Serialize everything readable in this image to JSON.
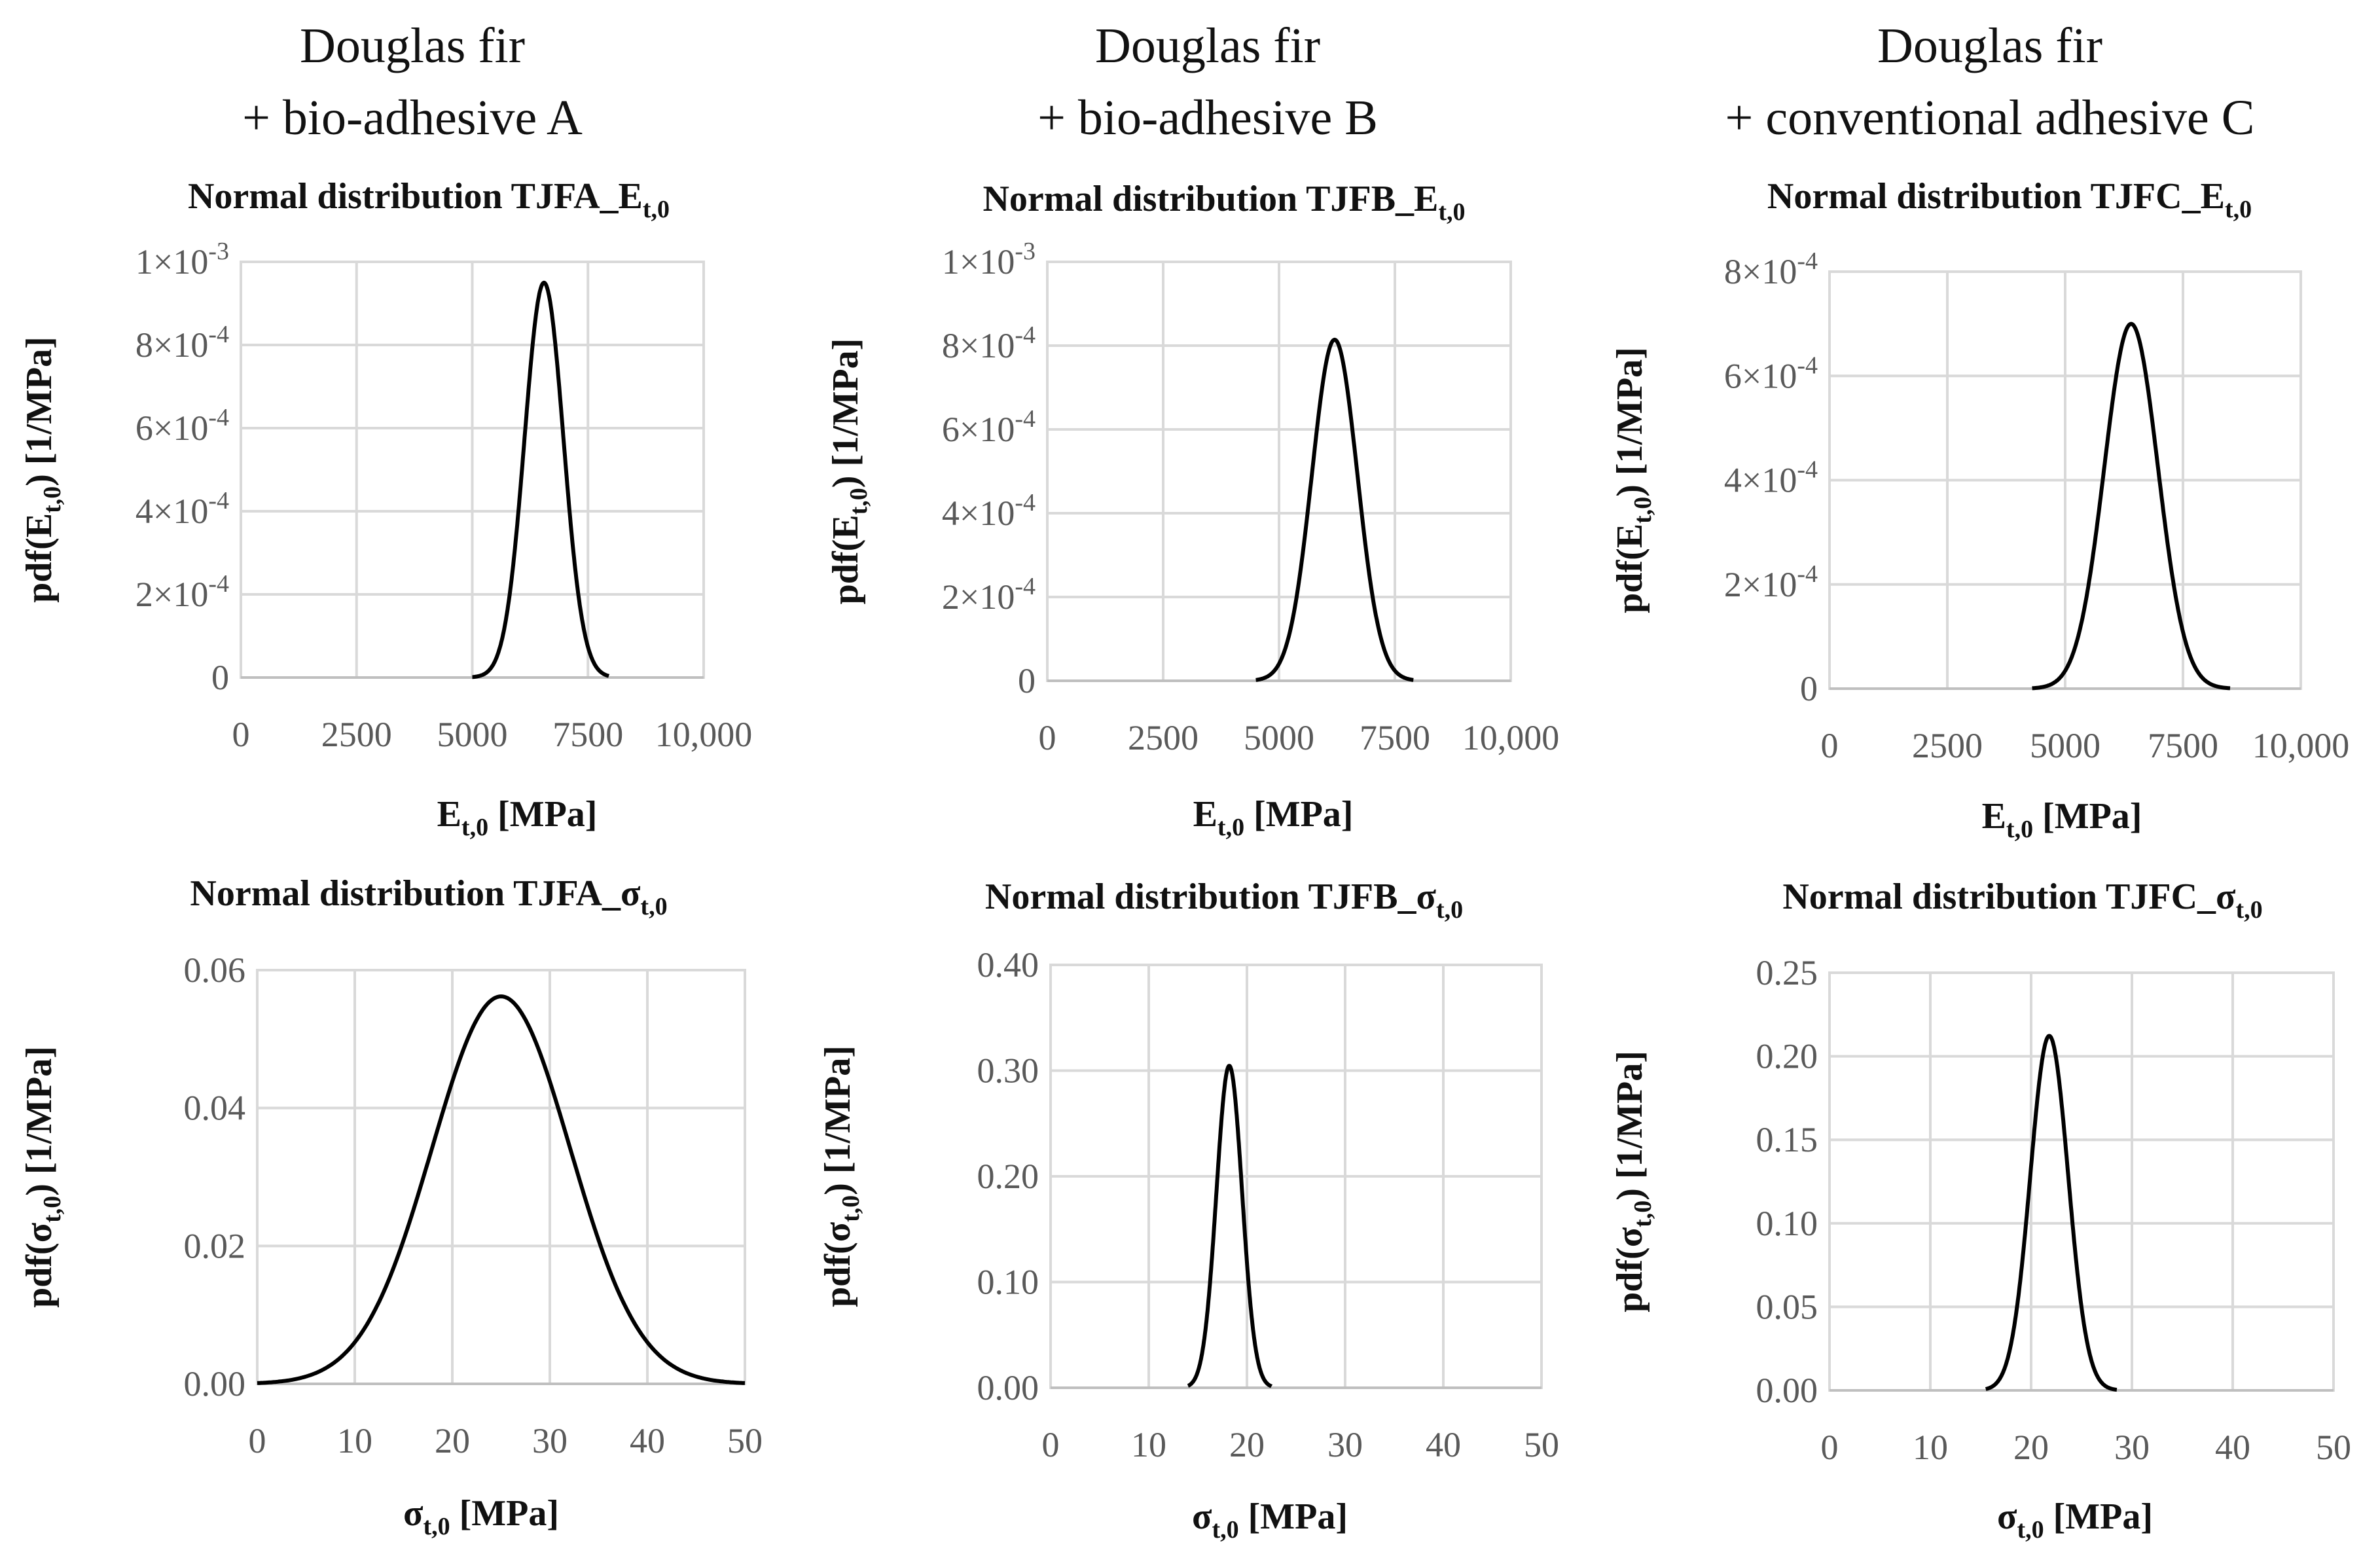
{
  "column_titles": [
    {
      "line1": "Douglas fir",
      "line2": "+ bio-adhesive A"
    },
    {
      "line1": "Douglas fir",
      "line2": "+ bio-adhesive B"
    },
    {
      "line1": "Douglas fir",
      "line2": "+ conventional adhesive C"
    }
  ],
  "chart_data": [
    {
      "type": "line",
      "title_main": "Normal distribution TJFA_",
      "title_symbol": "E",
      "title_sub": "t,0",
      "xlabel_symbol": "E",
      "xlabel_sub": "t,0",
      "xlabel_unit": " [MPa]",
      "ylabel_pre": "pdf(",
      "ylabel_symbol": "E",
      "ylabel_sub": "t,0",
      "ylabel_post": ") [1/MPa]",
      "xlim": [
        0,
        10000
      ],
      "ylim": [
        0,
        0.001
      ],
      "xticks": [
        0,
        2500,
        5000,
        7500,
        10000
      ],
      "xtick_labels": [
        "0",
        "2500",
        "5000",
        "7500",
        "10,000"
      ],
      "yticks": [
        0,
        0.0002,
        0.0004,
        0.0006,
        0.0008,
        0.001
      ],
      "ytick_labels": [
        {
          "m": "0",
          "e": ""
        },
        {
          "m": "2×10",
          "e": "-4"
        },
        {
          "m": "4×10",
          "e": "-4"
        },
        {
          "m": "6×10",
          "e": "-4"
        },
        {
          "m": "8×10",
          "e": "-4"
        },
        {
          "m": "1×10",
          "e": "-3"
        }
      ],
      "series": [
        {
          "name": "TJFA_Et,0",
          "distribution": "normal",
          "mean": 6550,
          "std": 420,
          "x_range": [
            5000,
            7950
          ]
        }
      ]
    },
    {
      "type": "line",
      "title_main": "Normal distribution TJFB_",
      "title_symbol": "E",
      "title_sub": "t,0",
      "xlabel_symbol": "E",
      "xlabel_sub": "t,0",
      "xlabel_unit": " [MPa]",
      "ylabel_pre": "pdf(",
      "ylabel_symbol": "E",
      "ylabel_sub": "t,0",
      "ylabel_post": ") [1/MPa]",
      "xlim": [
        0,
        10000
      ],
      "ylim": [
        0,
        0.001
      ],
      "xticks": [
        0,
        2500,
        5000,
        7500,
        10000
      ],
      "xtick_labels": [
        "0",
        "2500",
        "5000",
        "7500",
        "10,000"
      ],
      "yticks": [
        0,
        0.0002,
        0.0004,
        0.0006,
        0.0008,
        0.001
      ],
      "ytick_labels": [
        {
          "m": "0",
          "e": ""
        },
        {
          "m": "2×10",
          "e": "-4"
        },
        {
          "m": "4×10",
          "e": "-4"
        },
        {
          "m": "6×10",
          "e": "-4"
        },
        {
          "m": "8×10",
          "e": "-4"
        },
        {
          "m": "1×10",
          "e": "-3"
        }
      ],
      "series": [
        {
          "name": "TJFB_Et,0",
          "distribution": "normal",
          "mean": 6200,
          "std": 490,
          "x_range": [
            4500,
            7900
          ]
        }
      ]
    },
    {
      "type": "line",
      "title_main": "Normal distribution TJFC_",
      "title_symbol": "E",
      "title_sub": "t,0",
      "xlabel_symbol": "E",
      "xlabel_sub": "t,0",
      "xlabel_unit": " [MPa]",
      "ylabel_pre": "pdf(",
      "ylabel_symbol": "E",
      "ylabel_sub": "t,0",
      "ylabel_post": ") [1/MPa]",
      "xlim": [
        0,
        10000
      ],
      "ylim": [
        0,
        0.0008
      ],
      "xticks": [
        0,
        2500,
        5000,
        7500,
        10000
      ],
      "xtick_labels": [
        "0",
        "2500",
        "5000",
        "7500",
        "10,000"
      ],
      "yticks": [
        0,
        0.0002,
        0.0004,
        0.0006,
        0.0008
      ],
      "ytick_labels": [
        {
          "m": "0",
          "e": ""
        },
        {
          "m": "2×10",
          "e": "-4"
        },
        {
          "m": "4×10",
          "e": "-4"
        },
        {
          "m": "6×10",
          "e": "-4"
        },
        {
          "m": "8×10",
          "e": "-4"
        }
      ],
      "series": [
        {
          "name": "TJFC_Et,0",
          "distribution": "normal",
          "mean": 6400,
          "std": 570,
          "x_range": [
            4300,
            8500
          ]
        }
      ]
    },
    {
      "type": "line",
      "title_main": "Normal distribution TJFA_",
      "title_symbol": "σ",
      "title_sub": "t,0",
      "xlabel_symbol": "σ",
      "xlabel_sub": "t,0",
      "xlabel_unit": " [MPa]",
      "ylabel_pre": "pdf(",
      "ylabel_symbol": "σ",
      "ylabel_sub": "t,0",
      "ylabel_post": ") [1/MPa]",
      "xlim": [
        0,
        50
      ],
      "ylim": [
        0,
        0.06
      ],
      "xticks": [
        0,
        10,
        20,
        30,
        40,
        50
      ],
      "xtick_labels": [
        "0",
        "10",
        "20",
        "30",
        "40",
        "50"
      ],
      "yticks": [
        0,
        0.02,
        0.04,
        0.06
      ],
      "ytick_labels": [
        {
          "m": "0.00",
          "e": ""
        },
        {
          "m": "0.02",
          "e": ""
        },
        {
          "m": "0.04",
          "e": ""
        },
        {
          "m": "0.06",
          "e": ""
        }
      ],
      "series": [
        {
          "name": "TJFA_σt,0",
          "distribution": "normal",
          "mean": 25,
          "std": 7.1,
          "x_range": [
            0,
            50
          ]
        }
      ]
    },
    {
      "type": "line",
      "title_main": "Normal distribution TJFB_",
      "title_symbol": "σ",
      "title_sub": "t,0",
      "xlabel_symbol": "σ",
      "xlabel_sub": "t,0",
      "xlabel_unit": " [MPa]",
      "ylabel_pre": "pdf(",
      "ylabel_symbol": "σ",
      "ylabel_sub": "t,0",
      "ylabel_post": ") [1/MPa]",
      "xlim": [
        0,
        50
      ],
      "ylim": [
        0,
        0.4
      ],
      "xticks": [
        0,
        10,
        20,
        30,
        40,
        50
      ],
      "xtick_labels": [
        "0",
        "10",
        "20",
        "30",
        "40",
        "50"
      ],
      "yticks": [
        0,
        0.1,
        0.2,
        0.3,
        0.4
      ],
      "ytick_labels": [
        {
          "m": "0.00",
          "e": ""
        },
        {
          "m": "0.10",
          "e": ""
        },
        {
          "m": "0.20",
          "e": ""
        },
        {
          "m": "0.30",
          "e": ""
        },
        {
          "m": "0.40",
          "e": ""
        }
      ],
      "series": [
        {
          "name": "TJFB_σt,0",
          "distribution": "normal",
          "mean": 18.2,
          "std": 1.31,
          "x_range": [
            14,
            22.5
          ]
        }
      ]
    },
    {
      "type": "line",
      "title_main": "Normal distribution TJFC_",
      "title_symbol": "σ",
      "title_sub": "t,0",
      "xlabel_symbol": "σ",
      "xlabel_sub": "t,0",
      "xlabel_unit": " [MPa]",
      "ylabel_pre": "pdf(",
      "ylabel_symbol": "σ",
      "ylabel_sub": "t,0",
      "ylabel_post": ") [1/MPa]",
      "xlim": [
        0,
        50
      ],
      "ylim": [
        0,
        0.25
      ],
      "xticks": [
        0,
        10,
        20,
        30,
        40,
        50
      ],
      "xtick_labels": [
        "0",
        "10",
        "20",
        "30",
        "40",
        "50"
      ],
      "yticks": [
        0,
        0.05,
        0.1,
        0.15,
        0.2,
        0.25
      ],
      "ytick_labels": [
        {
          "m": "0.00",
          "e": ""
        },
        {
          "m": "0.05",
          "e": ""
        },
        {
          "m": "0.10",
          "e": ""
        },
        {
          "m": "0.15",
          "e": ""
        },
        {
          "m": "0.20",
          "e": ""
        },
        {
          "m": "0.25",
          "e": ""
        }
      ],
      "series": [
        {
          "name": "TJFC_σt,0",
          "distribution": "normal",
          "mean": 21.8,
          "std": 1.88,
          "x_range": [
            15.5,
            28.5
          ]
        }
      ]
    }
  ]
}
